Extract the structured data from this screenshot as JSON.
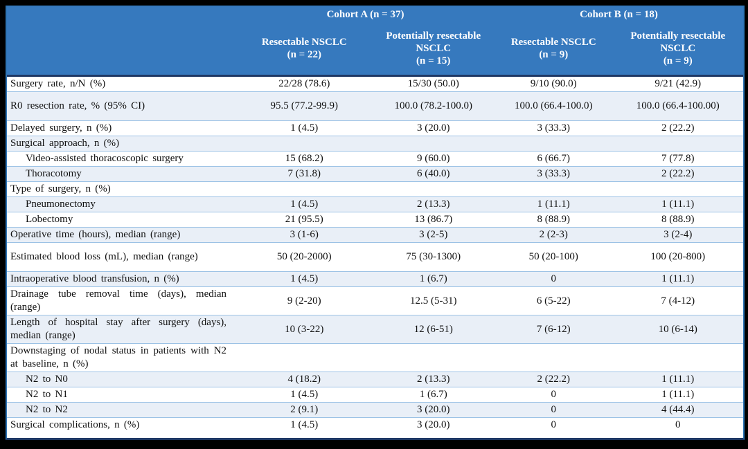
{
  "table": {
    "cohorts": [
      {
        "label": "Cohort A (n = 37)"
      },
      {
        "label": "Cohort B (n = 18)"
      }
    ],
    "columns": [
      {
        "name": "Resectable NSCLC",
        "n": "(n = 22)"
      },
      {
        "name": "Potentially resectable NSCLC",
        "n": "(n = 15)"
      },
      {
        "name": "Resectable NSCLC",
        "n": "(n = 9)"
      },
      {
        "name": "Potentially resectable NSCLC",
        "n": "(n = 9)"
      }
    ],
    "rows": [
      {
        "label": "Surgery rate, n/N (%)",
        "indent": false,
        "values": [
          "22/28 (78.6)",
          "15/30 (50.0)",
          "9/10 (90.0)",
          "9/21 (42.9)"
        ]
      },
      {
        "label": "R0 resection rate, % (95% CI)",
        "indent": false,
        "values": [
          "95.5 (77.2-99.9)",
          "100.0 (78.2-100.0)",
          "100.0 (66.4-100.0)",
          "100.0 (66.4-100.00)"
        ]
      },
      {
        "label": "Delayed surgery, n (%)",
        "indent": false,
        "values": [
          "1 (4.5)",
          "3 (20.0)",
          "3 (33.3)",
          "2 (22.2)"
        ]
      },
      {
        "label": "Surgical approach, n (%)",
        "indent": false,
        "values": [
          "",
          "",
          "",
          ""
        ]
      },
      {
        "label": "Video-assisted thoracoscopic surgery",
        "indent": true,
        "values": [
          "15 (68.2)",
          "9 (60.0)",
          "6 (66.7)",
          "7 (77.8)"
        ]
      },
      {
        "label": "Thoracotomy",
        "indent": true,
        "values": [
          "7 (31.8)",
          "6 (40.0)",
          "3 (33.3)",
          "2 (22.2)"
        ]
      },
      {
        "label": "Type of surgery, n (%)",
        "indent": false,
        "values": [
          "",
          "",
          "",
          ""
        ]
      },
      {
        "label": "Pneumonectomy",
        "indent": true,
        "values": [
          "1 (4.5)",
          "2 (13.3)",
          "1 (11.1)",
          "1 (11.1)"
        ]
      },
      {
        "label": "Lobectomy",
        "indent": true,
        "values": [
          "21 (95.5)",
          "13 (86.7)",
          "8 (88.9)",
          "8 (88.9)"
        ]
      },
      {
        "label": "Operative time (hours), median (range)",
        "indent": false,
        "values": [
          "3 (1-6)",
          "3 (2-5)",
          "2 (2-3)",
          "3 (2-4)"
        ]
      },
      {
        "label": "Estimated blood loss (mL), median (range)",
        "indent": false,
        "values": [
          "50 (20-2000)",
          "75 (30-1300)",
          "50 (20-100)",
          "100 (20-800)"
        ]
      },
      {
        "label": "Intraoperative blood transfusion, n (%)",
        "indent": false,
        "values": [
          "1 (4.5)",
          "1 (6.7)",
          "0",
          "1 (11.1)"
        ]
      },
      {
        "label": "Drainage tube removal time (days), median (range)",
        "indent": false,
        "values": [
          "9 (2-20)",
          "12.5 (5-31)",
          "6 (5-22)",
          "7 (4-12)"
        ]
      },
      {
        "label": "Length of hospital stay after surgery (days), median (range)",
        "indent": false,
        "values": [
          "10 (3-22)",
          "12 (6-51)",
          "7 (6-12)",
          "10 (6-14)"
        ]
      },
      {
        "label": "Downstaging of nodal status in patients with N2 at baseline, n (%)",
        "indent": false,
        "values": [
          "",
          "",
          "",
          ""
        ]
      },
      {
        "label": "N2 to N0",
        "indent": true,
        "values": [
          "4 (18.2)",
          "2 (13.3)",
          "2 (22.2)",
          "1 (11.1)"
        ]
      },
      {
        "label": "N2 to N1",
        "indent": true,
        "values": [
          "1 (4.5)",
          "1 (6.7)",
          "0",
          "1 (11.1)"
        ]
      },
      {
        "label": "N2 to N2",
        "indent": true,
        "values": [
          "2 (9.1)",
          "3 (20.0)",
          "0",
          "4 (44.4)"
        ]
      },
      {
        "label": "Surgical complications, n (%)",
        "indent": false,
        "values": [
          "1 (4.5)",
          "3 (20.0)",
          "0",
          "0"
        ]
      }
    ],
    "colors": {
      "header_bg": "#3679BE",
      "alt_row_bg": "#E9EFF7",
      "row_separator": "#9CC2E5",
      "dark_border": "#1F3864",
      "outer_border": "#2E75B6"
    }
  }
}
